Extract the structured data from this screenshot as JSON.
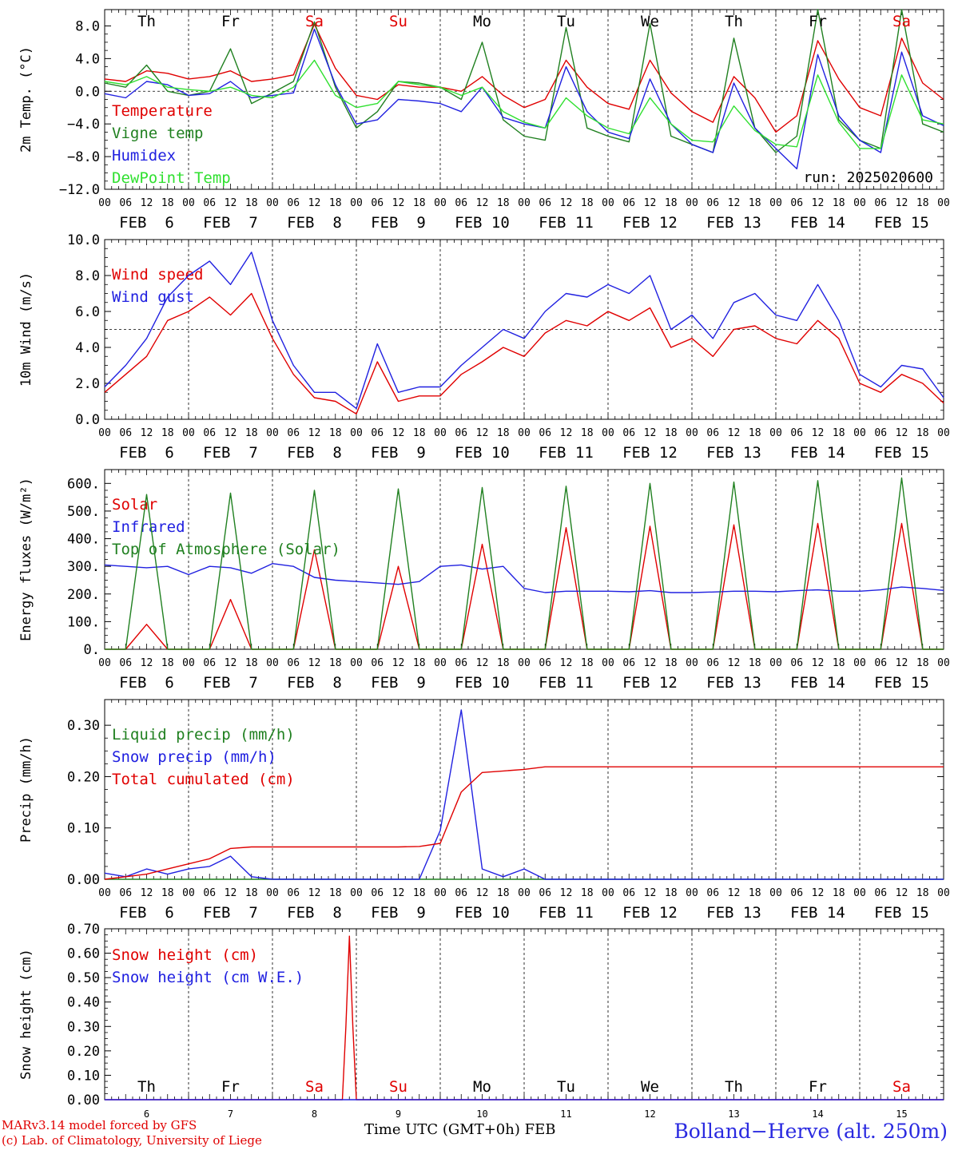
{
  "chart_data": [
    {
      "type": "line",
      "ylabel": "2m Temp. (°C)",
      "ylim": [
        -12,
        10
      ],
      "yticks": [
        "−12.0",
        "−8.0",
        "−4.0",
        "0.0",
        "4.0",
        "8.0"
      ],
      "reference_line": 0,
      "day_labels": [
        "Th",
        "Fr",
        "Sa",
        "Su",
        "Mo",
        "Tu",
        "We",
        "Th",
        "Fr",
        "Sa"
      ],
      "day_label_colors": [
        "#000000",
        "#000000",
        "#e00000",
        "#e00000",
        "#000000",
        "#000000",
        "#000000",
        "#000000",
        "#000000",
        "#e00000"
      ],
      "run_label": "run: 2025020600",
      "x": [
        0,
        6,
        12,
        18,
        24,
        30,
        36,
        42,
        48,
        54,
        60,
        66,
        72,
        78,
        84,
        90,
        96,
        102,
        108,
        114,
        120,
        126,
        132,
        138,
        144,
        150,
        156,
        162,
        168,
        174,
        180,
        186,
        192,
        198,
        204,
        210,
        216,
        222,
        228,
        234,
        240
      ],
      "series": [
        {
          "name": "Temperature",
          "color": "#e00000",
          "values": [
            1.5,
            1.2,
            2.5,
            2.2,
            1.5,
            1.8,
            2.5,
            1.2,
            1.5,
            2.0,
            8.2,
            2.8,
            -0.5,
            -1.0,
            0.8,
            0.5,
            0.5,
            0.0,
            1.8,
            -0.5,
            -2.0,
            -1.0,
            3.8,
            0.5,
            -1.5,
            -2.2,
            3.8,
            -0.2,
            -2.5,
            -3.8,
            1.8,
            -0.8,
            -5.0,
            -3.0,
            6.2,
            1.5,
            -2.0,
            -3.0,
            6.5,
            1.0,
            -1.0
          ]
        },
        {
          "name": "Vigne temp",
          "color": "#208020",
          "values": [
            1.0,
            0.5,
            3.2,
            0.0,
            -0.5,
            0.0,
            5.2,
            -1.5,
            -0.2,
            1.2,
            8.5,
            0.5,
            -4.5,
            -2.5,
            1.2,
            1.0,
            0.5,
            -1.0,
            6.0,
            -3.5,
            -5.5,
            -6.0,
            7.8,
            -4.5,
            -5.5,
            -6.2,
            8.3,
            -5.5,
            -6.5,
            -7.5,
            6.5,
            -4.5,
            -7.5,
            -5.5,
            10.0,
            -3.5,
            -6.0,
            -7.0,
            10.0,
            -4.0,
            -5.0
          ]
        },
        {
          "name": "Humidex",
          "color": "#2020e0",
          "values": [
            -0.3,
            -0.8,
            1.2,
            0.8,
            -0.5,
            -0.3,
            1.2,
            -0.8,
            -0.5,
            -0.2,
            7.6,
            0.8,
            -4.0,
            -3.5,
            -1.0,
            -1.2,
            -1.5,
            -2.5,
            0.5,
            -3.2,
            -4.0,
            -4.5,
            3.0,
            -2.5,
            -5.0,
            -5.8,
            1.5,
            -4.0,
            -6.5,
            -7.5,
            1.0,
            -4.5,
            -7.0,
            -9.5,
            4.5,
            -3.0,
            -6.0,
            -7.5,
            4.8,
            -3.0,
            -4.2
          ]
        },
        {
          "name": "DewPoint Temp",
          "color": "#30e030",
          "values": [
            1.2,
            0.8,
            1.8,
            0.5,
            0.2,
            0.0,
            0.5,
            -0.5,
            -0.8,
            0.5,
            3.8,
            -0.5,
            -2.0,
            -1.5,
            1.2,
            0.8,
            0.5,
            -0.5,
            0.5,
            -2.5,
            -3.8,
            -4.5,
            -0.8,
            -3.0,
            -4.5,
            -5.2,
            -0.8,
            -4.0,
            -6.0,
            -6.2,
            -1.8,
            -4.8,
            -6.5,
            -6.8,
            2.0,
            -3.8,
            -7.0,
            -7.0,
            2.0,
            -3.5,
            -4.0
          ]
        }
      ]
    },
    {
      "type": "line",
      "ylabel": "10m Wind (m/s)",
      "ylim": [
        0,
        10
      ],
      "yticks": [
        "0.0",
        "2.0",
        "4.0",
        "6.0",
        "8.0",
        "10.0"
      ],
      "reference_line": 5,
      "x": [
        0,
        6,
        12,
        18,
        24,
        30,
        36,
        42,
        48,
        54,
        60,
        66,
        72,
        78,
        84,
        90,
        96,
        102,
        108,
        114,
        120,
        126,
        132,
        138,
        144,
        150,
        156,
        162,
        168,
        174,
        180,
        186,
        192,
        198,
        204,
        210,
        216,
        222,
        228,
        234,
        240
      ],
      "series": [
        {
          "name": "Wind speed",
          "color": "#e00000",
          "values": [
            1.5,
            2.5,
            3.5,
            5.5,
            6.0,
            6.8,
            5.8,
            7.0,
            4.5,
            2.5,
            1.2,
            1.0,
            0.3,
            3.2,
            1.0,
            1.3,
            1.3,
            2.5,
            3.2,
            4.0,
            3.5,
            4.8,
            5.5,
            5.2,
            6.0,
            5.5,
            6.2,
            4.0,
            4.5,
            3.5,
            5.0,
            5.2,
            4.5,
            4.2,
            5.5,
            4.5,
            2.0,
            1.5,
            2.5,
            2.0,
            0.9
          ]
        },
        {
          "name": "Wind gust",
          "color": "#2020e0",
          "values": [
            1.8,
            3.0,
            4.5,
            6.8,
            8.0,
            8.8,
            7.5,
            9.3,
            5.5,
            3.0,
            1.5,
            1.5,
            0.6,
            4.2,
            1.5,
            1.8,
            1.8,
            3.0,
            4.0,
            5.0,
            4.5,
            6.0,
            7.0,
            6.8,
            7.5,
            7.0,
            8.0,
            5.0,
            5.8,
            4.5,
            6.5,
            7.0,
            5.8,
            5.5,
            7.5,
            5.5,
            2.5,
            1.8,
            3.0,
            2.8,
            1.2
          ]
        }
      ]
    },
    {
      "type": "line",
      "ylabel": "Energy fluxes (W/m²)",
      "ylim": [
        0,
        650
      ],
      "yticks": [
        "0.",
        "100.",
        "200.",
        "300.",
        "400.",
        "500.",
        "600."
      ],
      "x": [
        0,
        6,
        12,
        18,
        24,
        30,
        36,
        42,
        48,
        54,
        60,
        66,
        72,
        78,
        84,
        90,
        96,
        102,
        108,
        114,
        120,
        126,
        132,
        138,
        144,
        150,
        156,
        162,
        168,
        174,
        180,
        186,
        192,
        198,
        204,
        210,
        216,
        222,
        228,
        234,
        240
      ],
      "series": [
        {
          "name": "Solar",
          "color": "#e00000",
          "values": [
            0,
            0,
            90,
            0,
            0,
            0,
            180,
            0,
            0,
            0,
            360,
            0,
            0,
            0,
            300,
            0,
            0,
            0,
            380,
            0,
            0,
            0,
            440,
            0,
            0,
            0,
            445,
            0,
            0,
            0,
            450,
            0,
            0,
            0,
            455,
            0,
            0,
            0,
            455,
            0,
            0
          ]
        },
        {
          "name": "Infrared",
          "color": "#2020e0",
          "values": [
            305,
            300,
            295,
            300,
            270,
            300,
            295,
            275,
            310,
            300,
            260,
            250,
            245,
            240,
            235,
            245,
            300,
            305,
            290,
            300,
            220,
            205,
            210,
            210,
            210,
            208,
            212,
            205,
            205,
            207,
            210,
            210,
            208,
            212,
            215,
            210,
            210,
            215,
            225,
            220,
            213
          ]
        },
        {
          "name": "Top of Atmosphere (Solar)",
          "color": "#208020",
          "values": [
            0,
            0,
            560,
            0,
            0,
            0,
            565,
            0,
            0,
            0,
            575,
            0,
            0,
            0,
            580,
            0,
            0,
            0,
            585,
            0,
            0,
            0,
            590,
            0,
            0,
            0,
            600,
            0,
            0,
            0,
            605,
            0,
            0,
            0,
            610,
            0,
            0,
            0,
            620,
            0,
            0
          ]
        }
      ]
    },
    {
      "type": "line",
      "ylabel": "Precip (mm/h)",
      "ylim": [
        0,
        0.35
      ],
      "yticks": [
        "0.00",
        "0.10",
        "0.20",
        "0.30"
      ],
      "x": [
        0,
        6,
        12,
        18,
        24,
        30,
        36,
        42,
        48,
        54,
        60,
        66,
        72,
        78,
        84,
        90,
        96,
        102,
        108,
        114,
        120,
        126,
        132,
        138,
        144,
        150,
        156,
        162,
        168,
        174,
        180,
        186,
        192,
        198,
        204,
        210,
        216,
        222,
        228,
        234,
        240
      ],
      "series": [
        {
          "name": "Liquid precip (mm/h)",
          "color": "#208020",
          "values": [
            0,
            0,
            0,
            0,
            0,
            0,
            0,
            0,
            0,
            0,
            0,
            0,
            0,
            0,
            0,
            0,
            0,
            0,
            0,
            0,
            0,
            0,
            0,
            0,
            0,
            0,
            0,
            0,
            0,
            0,
            0,
            0,
            0,
            0,
            0,
            0,
            0,
            0,
            0,
            0,
            0
          ]
        },
        {
          "name": "Snow precip (mm/h)",
          "color": "#2020e0",
          "values": [
            0.012,
            0.005,
            0.02,
            0.01,
            0.02,
            0.025,
            0.045,
            0.005,
            0,
            0,
            0,
            0,
            0,
            0,
            0,
            0,
            0.095,
            0.33,
            0.02,
            0.005,
            0.02,
            0.0,
            0,
            0,
            0,
            0,
            0,
            0,
            0,
            0,
            0,
            0,
            0,
            0,
            0,
            0,
            0,
            0,
            0,
            0,
            0
          ]
        },
        {
          "name": "Total cumulated (cm)",
          "color": "#e00000",
          "values": [
            0.0,
            0.005,
            0.01,
            0.02,
            0.03,
            0.04,
            0.06,
            0.063,
            0.063,
            0.063,
            0.063,
            0.063,
            0.063,
            0.063,
            0.063,
            0.064,
            0.07,
            0.17,
            0.208,
            0.211,
            0.214,
            0.219,
            0.219,
            0.219,
            0.219,
            0.219,
            0.219,
            0.219,
            0.219,
            0.219,
            0.219,
            0.219,
            0.219,
            0.219,
            0.219,
            0.219,
            0.219,
            0.219,
            0.219,
            0.219,
            0.219
          ]
        }
      ]
    },
    {
      "type": "line",
      "ylabel": "Snow height (cm)",
      "ylim": [
        0,
        0.7
      ],
      "yticks": [
        "0.00",
        "0.10",
        "0.20",
        "0.30",
        "0.40",
        "0.50",
        "0.60",
        "0.70"
      ],
      "day_labels": [
        "Th",
        "Fr",
        "Sa",
        "Su",
        "Mo",
        "Tu",
        "We",
        "Th",
        "Fr",
        "Sa"
      ],
      "day_label_colors": [
        "#000000",
        "#000000",
        "#e00000",
        "#e00000",
        "#000000",
        "#000000",
        "#000000",
        "#000000",
        "#000000",
        "#e00000"
      ],
      "date_numbers": [
        "6",
        "7",
        "8",
        "9",
        "10",
        "11",
        "12",
        "13",
        "14",
        "15"
      ],
      "x": [
        0,
        68,
        69,
        70,
        71,
        72,
        240
      ],
      "series": [
        {
          "name": "Snow height (cm)",
          "color": "#e00000",
          "values": [
            0,
            0,
            0.3,
            0.67,
            0.3,
            0,
            0
          ]
        },
        {
          "name": "Snow height (cm W.E.)",
          "color": "#2020e0",
          "values": [
            0,
            0,
            0,
            0,
            0,
            0,
            0
          ]
        }
      ]
    }
  ],
  "axis": {
    "hour_labels": [
      "00",
      "06",
      "12",
      "18"
    ],
    "final_hour_label": "00",
    "date_labels": [
      "FEB  6",
      "FEB  7",
      "FEB  8",
      "FEB  9",
      "FEB 10",
      "FEB 11",
      "FEB 12",
      "FEB 13",
      "FEB 14",
      "FEB 15"
    ],
    "x_title": "Time UTC (GMT+0h)",
    "x_title_month": "FEB"
  },
  "footer": {
    "model_line": "MARv3.14 model forced by GFS",
    "copyright_line": "(c) Lab. of Climatology, University of Liege",
    "station": "Bolland−Herve (alt. 250m)"
  }
}
